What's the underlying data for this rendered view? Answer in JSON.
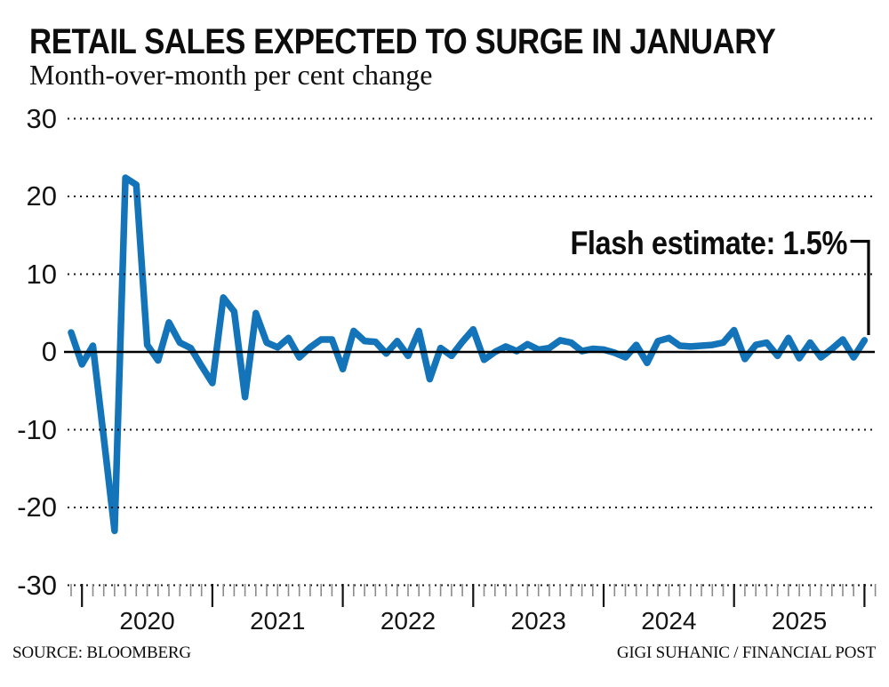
{
  "header": {
    "title": "RETAIL SALES EXPECTED TO SURGE IN JANUARY",
    "subtitle": "Month-over-month per cent change"
  },
  "footer": {
    "source": "SOURCE: BLOOMBERG",
    "credit": "GIGI SUHANIC / FINANCIAL POST"
  },
  "chart_data": {
    "type": "line",
    "title": "RETAIL SALES EXPECTED TO SURGE IN JANUARY",
    "subtitle": "Month-over-month per cent change",
    "ylabel": "per cent change (month-over-month)",
    "ylim": [
      -30,
      30
    ],
    "yticks": [
      30,
      20,
      10,
      0,
      -10,
      -20,
      -30
    ],
    "grid": "dotted-horizontal",
    "zero_baseline": true,
    "line_color": "#1374b9",
    "year_labels": [
      "2020",
      "2021",
      "2022",
      "2023",
      "2024",
      "2025"
    ],
    "x_unit": "month",
    "x": [
      "2019-12",
      "2020-01",
      "2020-02",
      "2020-03",
      "2020-04",
      "2020-05",
      "2020-06",
      "2020-07",
      "2020-08",
      "2020-09",
      "2020-10",
      "2020-11",
      "2020-12",
      "2021-01",
      "2021-02",
      "2021-03",
      "2021-04",
      "2021-05",
      "2021-06",
      "2021-07",
      "2021-08",
      "2021-09",
      "2021-10",
      "2021-11",
      "2021-12",
      "2022-01",
      "2022-02",
      "2022-03",
      "2022-04",
      "2022-05",
      "2022-06",
      "2022-07",
      "2022-08",
      "2022-09",
      "2022-10",
      "2022-11",
      "2022-12",
      "2023-01",
      "2023-02",
      "2023-03",
      "2023-04",
      "2023-05",
      "2023-06",
      "2023-07",
      "2023-08",
      "2023-09",
      "2023-10",
      "2023-11",
      "2023-12",
      "2024-01",
      "2024-02",
      "2024-03",
      "2024-04",
      "2024-05",
      "2024-06",
      "2024-07",
      "2024-08",
      "2024-09",
      "2024-10",
      "2024-11",
      "2024-12",
      "2025-01",
      "2025-02",
      "2025-03",
      "2025-04",
      "2025-05",
      "2025-06",
      "2025-07",
      "2025-08",
      "2025-09",
      "2025-10",
      "2025-11",
      "2025-12",
      "2026-01"
    ],
    "values": [
      2.5,
      -1.6,
      0.8,
      -11.0,
      -23.0,
      22.4,
      21.5,
      0.9,
      -1.1,
      3.8,
      1.2,
      0.5,
      -1.8,
      -4.0,
      7.0,
      5.2,
      -5.8,
      5.0,
      1.2,
      0.6,
      1.8,
      -0.7,
      0.6,
      1.6,
      1.6,
      -2.2,
      2.7,
      1.4,
      1.3,
      -0.2,
      1.4,
      -0.5,
      2.7,
      -3.5,
      0.5,
      -0.5,
      1.3,
      2.9,
      -1.0,
      0.0,
      0.7,
      0.1,
      1.0,
      0.3,
      0.5,
      1.5,
      1.2,
      0.1,
      0.4,
      0.3,
      -0.1,
      -0.7,
      0.9,
      -1.4,
      1.4,
      1.8,
      0.8,
      0.7,
      0.8,
      0.9,
      1.2,
      2.8,
      -0.9,
      0.9,
      1.2,
      -0.5,
      1.8,
      -0.8,
      1.2,
      -0.7,
      0.4,
      1.6,
      -0.7,
      1.5
    ],
    "annotation": {
      "text": "Flash estimate: 1.5%",
      "value": 1.5,
      "month": "2026-01"
    },
    "source": "Bloomberg",
    "legend": "none"
  }
}
